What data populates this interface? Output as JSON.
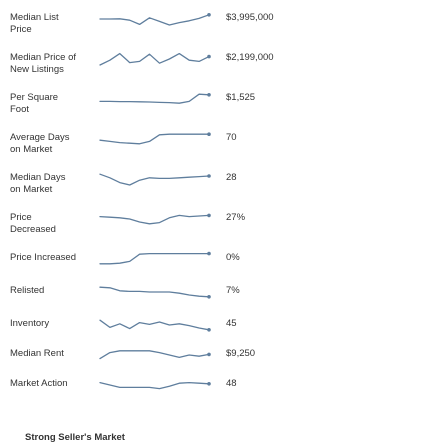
{
  "rows": [
    {
      "label": "Median List",
      "label2": "Price",
      "value": "$3,995,000",
      "trend": [
        0.5,
        0.5,
        0.52,
        0.4,
        0.05,
        0.6,
        0.3,
        0.0,
        0.2,
        0.35,
        0.55,
        0.85
      ]
    },
    {
      "label": "Median Price of",
      "label2": "New Listings",
      "value": "$2,199,000",
      "trend": [
        0.0,
        0.4,
        0.95,
        0.2,
        0.3,
        0.9,
        0.15,
        0.5,
        0.95,
        0.4,
        0.3,
        0.7
      ]
    },
    {
      "label": "Per Square",
      "label2": "Foot",
      "value": "$1,525",
      "trend": [
        0.3,
        0.3,
        0.28,
        0.28,
        0.27,
        0.25,
        0.22,
        0.2,
        0.15,
        0.3,
        0.9,
        0.85
      ]
    },
    {
      "label": "Average Days",
      "label2": "on Market",
      "value": "70",
      "trend": [
        0.4,
        0.3,
        0.2,
        0.15,
        0.1,
        0.3,
        0.85,
        0.9,
        0.9,
        0.9,
        0.9,
        0.9
      ]
    },
    {
      "label": "Median Days",
      "label2": "on Market",
      "value": "28",
      "trend": [
        0.9,
        0.6,
        0.2,
        0.0,
        0.4,
        0.6,
        0.55,
        0.55,
        0.6,
        0.65,
        0.7,
        0.75
      ]
    },
    {
      "label": "Price",
      "label2": "Decreased",
      "value": "27%",
      "trend": [
        0.7,
        0.65,
        0.6,
        0.5,
        0.25,
        0.1,
        0.2,
        0.6,
        0.8,
        0.7,
        0.75,
        0.8
      ]
    },
    {
      "label": "Price Increased",
      "label2": "",
      "value": "0%",
      "trend": [
        0.1,
        0.1,
        0.15,
        0.3,
        0.9,
        0.95,
        0.95,
        0.95,
        0.95,
        0.95,
        0.95,
        0.95
      ]
    },
    {
      "label": "Relisted",
      "label2": "",
      "value": "7%",
      "trend": [
        0.9,
        0.85,
        0.6,
        0.55,
        0.55,
        0.5,
        0.5,
        0.5,
        0.4,
        0.25,
        0.15,
        0.1
      ]
    },
    {
      "label": "Inventory",
      "label2": "",
      "value": "45",
      "trend": [
        0.9,
        0.3,
        0.6,
        0.2,
        0.7,
        0.55,
        0.75,
        0.5,
        0.6,
        0.45,
        0.25,
        0.1
      ]
    },
    {
      "label": "Median Rent",
      "label2": "",
      "value": "$9,250",
      "trend": [
        0.2,
        0.7,
        0.85,
        0.85,
        0.85,
        0.85,
        0.7,
        0.5,
        0.3,
        0.5,
        0.4,
        0.55
      ]
    },
    {
      "label": "Market Action",
      "label2": "",
      "value": "48",
      "trend": [
        0.7,
        0.5,
        0.3,
        0.3,
        0.3,
        0.3,
        0.2,
        0.4,
        0.65,
        0.7,
        0.65,
        0.6
      ]
    }
  ],
  "footer": "Strong Seller's Market"
}
